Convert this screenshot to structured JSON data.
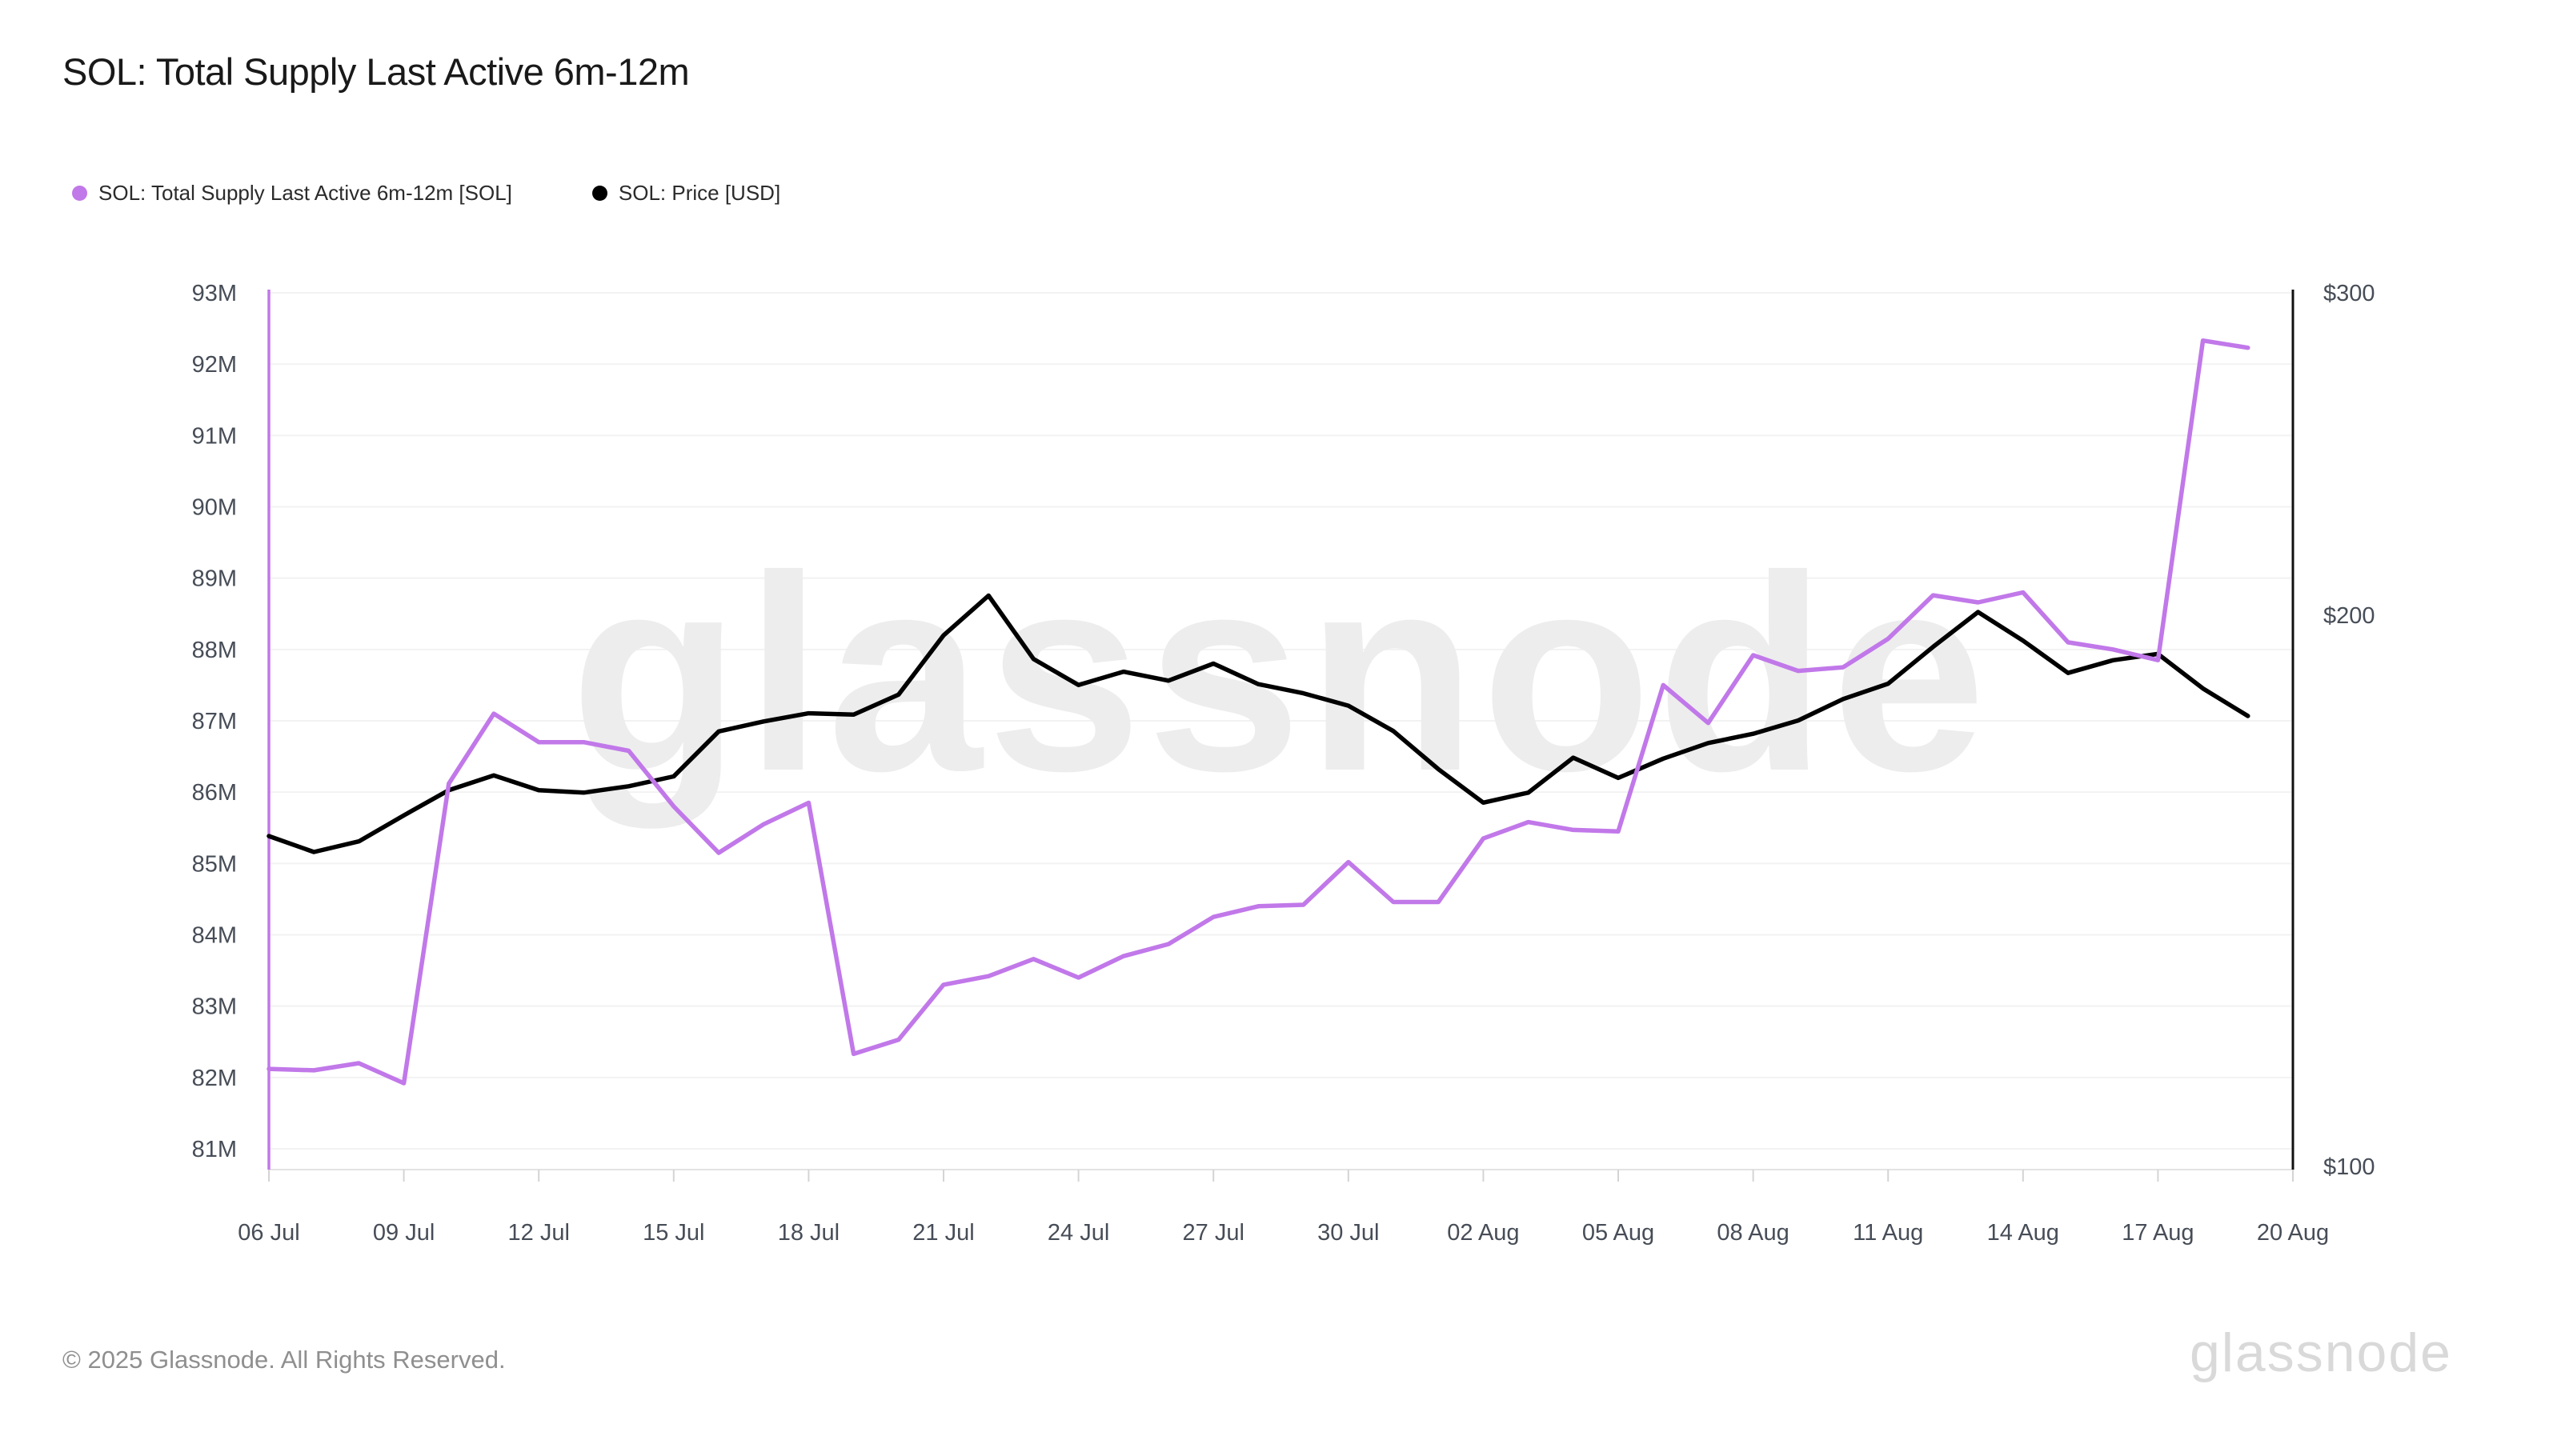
{
  "title": "SOL: Total Supply Last Active 6m-12m",
  "legend": [
    {
      "label": "SOL: Total Supply Last Active 6m-12m [SOL]",
      "color": "#c178e9"
    },
    {
      "label": "SOL: Price [USD]",
      "color": "#000000"
    }
  ],
  "watermark": "glassnode",
  "footer": {
    "copyright": "© 2025 Glassnode. All Rights Reserved.",
    "brand": "glassnode"
  },
  "chart_data": {
    "type": "line",
    "title": "SOL: Total Supply Last Active 6m-12m",
    "grid": "horizontal",
    "legend_position": "top-left",
    "x_range": {
      "start": "06 Jul",
      "end": "20 Aug"
    },
    "x_tick_labels": [
      "06 Jul",
      "09 Jul",
      "12 Jul",
      "15 Jul",
      "18 Jul",
      "21 Jul",
      "24 Jul",
      "27 Jul",
      "30 Jul",
      "02 Aug",
      "05 Aug",
      "08 Aug",
      "11 Aug",
      "14 Aug",
      "17 Aug",
      "20 Aug"
    ],
    "x_tick_day_indices": [
      0,
      3,
      6,
      9,
      12,
      15,
      18,
      21,
      24,
      27,
      30,
      33,
      36,
      39,
      42,
      45
    ],
    "axes": {
      "left": {
        "unit": "SOL (millions)",
        "scale": "linear",
        "min": 81,
        "max": 93,
        "tick_labels": [
          "93M",
          "92M",
          "91M",
          "90M",
          "89M",
          "88M",
          "87M",
          "86M",
          "85M",
          "84M",
          "83M",
          "82M",
          "81M"
        ],
        "tick_values": [
          93,
          92,
          91,
          90,
          89,
          88,
          87,
          86,
          85,
          84,
          83,
          82,
          81
        ],
        "axis_line_color": "#c178e9"
      },
      "right": {
        "unit": "USD",
        "scale": "log",
        "min": 100,
        "max": 300,
        "tick_labels": [
          "$300",
          "$200",
          "$100"
        ],
        "tick_values": [
          300,
          200,
          100
        ],
        "axis_line_color": "#111111"
      }
    },
    "series": [
      {
        "name": "SOL: Total Supply Last Active 6m-12m [SOL]",
        "axis": "left",
        "color": "#c178e9",
        "unit": "M SOL",
        "values": [
          82.12,
          82.1,
          82.2,
          81.92,
          86.12,
          87.1,
          86.7,
          86.7,
          86.58,
          85.8,
          85.15,
          85.55,
          85.85,
          82.33,
          82.53,
          83.3,
          83.42,
          83.66,
          83.4,
          83.7,
          83.87,
          84.25,
          84.4,
          84.42,
          85.02,
          84.46,
          84.46,
          85.35,
          85.58,
          85.47,
          85.45,
          87.5,
          86.97,
          87.92,
          87.7,
          87.75,
          88.15,
          88.76,
          88.66,
          88.8,
          88.1,
          88.0,
          87.85,
          92.33,
          92.23
        ]
      },
      {
        "name": "SOL: Price [USD]",
        "axis": "right",
        "color": "#000000",
        "unit": "USD",
        "values": [
          151.5,
          148.5,
          150.5,
          155.5,
          160.5,
          163.5,
          160.5,
          160.0,
          161.3,
          163.3,
          172.8,
          175.0,
          176.8,
          176.5,
          181.0,
          195.0,
          205.0,
          189.3,
          183.2,
          186.3,
          184.2,
          188.2,
          183.4,
          181.3,
          178.5,
          172.9,
          164.8,
          158.0,
          160.0,
          167.2,
          163.0,
          167.0,
          170.3,
          172.3,
          175.2,
          180.0,
          183.5,
          192.2,
          200.8,
          193.7,
          186.0,
          189.0,
          190.5,
          182.4,
          176.2
        ]
      }
    ]
  }
}
